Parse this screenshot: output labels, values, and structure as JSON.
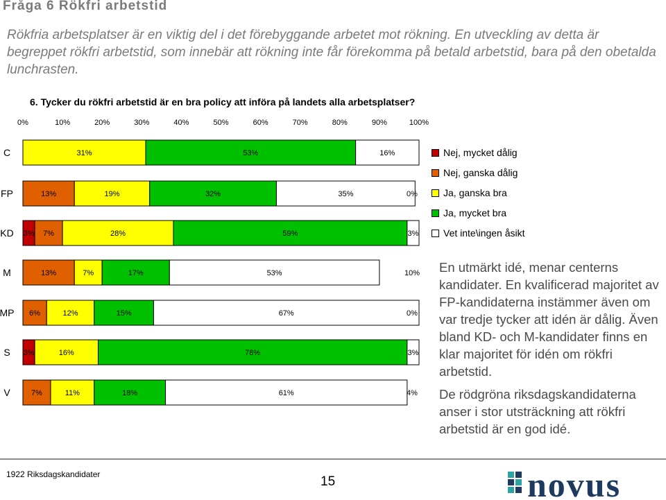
{
  "heading": "Fråga 6  Rökfri arbetstid",
  "intro": "Rökfria arbetsplatser är en viktig del i det förebyggande arbetet mot rökning. En utveckling av detta är begreppet rökfri arbetstid, som innebär att rökning inte får förekomma på betald arbetstid, bara på den obetalda lunchrasten.",
  "question": "6. Tycker du rökfri arbetstid är en bra policy att införa på landets alla arbetsplatser?",
  "chart_data": {
    "type": "bar",
    "orientation": "horizontal",
    "stacked": true,
    "normalized": true,
    "title": "",
    "xlabel": "",
    "ylabel": "",
    "xlim": [
      0,
      100
    ],
    "ticks": [
      "0%",
      "10%",
      "20%",
      "30%",
      "40%",
      "50%",
      "60%",
      "70%",
      "80%",
      "90%",
      "100%"
    ],
    "categories": [
      "C",
      "FP",
      "KD",
      "M",
      "MP",
      "S",
      "V"
    ],
    "series": [
      {
        "name": "Nej, mycket dålig",
        "color": "#c00000",
        "values": [
          0,
          0,
          3,
          0,
          0,
          3,
          0
        ],
        "labels": [
          "",
          "",
          "3%",
          "",
          "",
          "3%",
          ""
        ]
      },
      {
        "name": "Nej, ganska dålig",
        "color": "#e06000",
        "values": [
          0,
          13,
          7,
          13,
          6,
          0,
          7
        ],
        "labels": [
          "",
          "13%",
          "7%",
          "13%",
          "6%",
          "",
          "7%"
        ]
      },
      {
        "name": "Ja, ganska bra",
        "color": "#ffff00",
        "values": [
          31,
          19,
          28,
          7,
          12,
          16,
          11
        ],
        "labels": [
          "31%",
          "19%",
          "28%",
          "7%",
          "12%",
          "16%",
          "11%"
        ]
      },
      {
        "name": "Ja, mycket bra",
        "color": "#00c000",
        "values": [
          53,
          32,
          59,
          17,
          15,
          78,
          18
        ],
        "labels": [
          "53%",
          "32%",
          "59%",
          "17%",
          "15%",
          "78%",
          "18%"
        ]
      },
      {
        "name": "Vet inte\\ingen åsikt",
        "color": "#ffffff",
        "values": [
          16,
          35,
          3,
          53,
          67,
          3,
          61
        ],
        "labels": [
          "16%",
          "35%",
          "3%",
          "53%",
          "67%",
          "3%",
          "61%"
        ]
      }
    ],
    "trailing_labels": [
      "",
      "0%",
      "",
      "10%",
      "0%",
      "",
      "4%"
    ],
    "legend": "right",
    "grid": false
  },
  "comment1": "En utmärkt idé, menar centerns kandidater. En kvalificerad majoritet av FP-kandidaterna instämmer även om var tredje tycker att idén är dålig. Även bland KD- och M-kandidater finns en klar majoritet för idén om rökfri arbetstid.",
  "comment2": "De rödgröna riksdagskandidaterna anser i stor utsträckning att rökfri arbetstid är en god idé.",
  "footer": {
    "left": "1922 Riksdagskandidater",
    "page": "15",
    "logo": "novus",
    "logo_color": "#1f3a5f",
    "logo_accent": "#2ea3a3"
  }
}
